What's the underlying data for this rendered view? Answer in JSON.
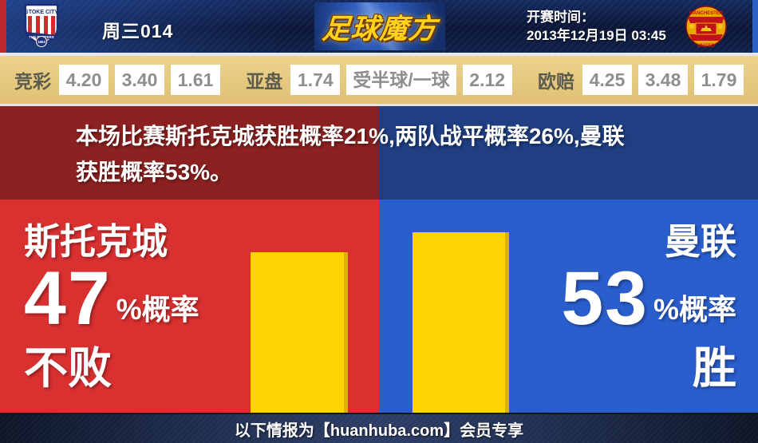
{
  "header": {
    "match_code": "周三014",
    "logo_text": "足球魔方",
    "kickoff_label": "开赛时间：",
    "kickoff_time": "2013年12月19日 03:45",
    "home_badge": {
      "team": "斯托克城",
      "text_top": "STOKE CITY",
      "text_bottom": "THE POTTERS",
      "year": "1863"
    },
    "away_badge": {
      "team": "曼联",
      "text_top": "MANCHESTER",
      "text_bottom": "UNITED"
    }
  },
  "odds_bar": {
    "groups": [
      {
        "label": "竞彩",
        "values": [
          "4.20",
          "3.40",
          "1.61"
        ]
      },
      {
        "label": "亚盘",
        "values": [
          "1.74",
          "受半球/一球",
          "2.12"
        ]
      },
      {
        "label": "欧赔",
        "values": [
          "4.25",
          "3.48",
          "1.79"
        ]
      }
    ]
  },
  "banner": {
    "lines": [
      "本场比赛斯托克城获胜概率21%,两队战平概率26%,曼联",
      "获胜概率53%。"
    ]
  },
  "prediction": {
    "home": {
      "team": "斯托克城",
      "percent": "47",
      "percent_suffix": "%概率",
      "outcome": "不败",
      "bar_height_pct": 47
    },
    "away": {
      "team": "曼联",
      "percent": "53",
      "percent_suffix": "%概率",
      "outcome": "胜",
      "bar_height_pct": 53
    }
  },
  "footer": {
    "text": "以下情报为【huanhuba.com】会员专享"
  },
  "colors": {
    "header_navy": "#0d1c40",
    "edge_red": "#c0262d",
    "edge_blue": "#2a60c8",
    "odds_tan": "#e5c87d",
    "banner_red": "#8c2121",
    "banner_blue": "#1f3f82",
    "main_red": "#d93030",
    "main_blue": "#2a5ecc",
    "bar_yellow": "#ffd400",
    "logo_gold": "#ffd21e"
  },
  "chart_data": {
    "type": "bar",
    "categories": [
      "斯托克城 不败",
      "曼联 胜"
    ],
    "values": [
      47,
      53
    ],
    "unit": "%",
    "title": "",
    "xlabel": "",
    "ylabel": "",
    "ylim": [
      0,
      100
    ],
    "bar_color": "#ffd400",
    "legend": "none",
    "grid": false
  }
}
